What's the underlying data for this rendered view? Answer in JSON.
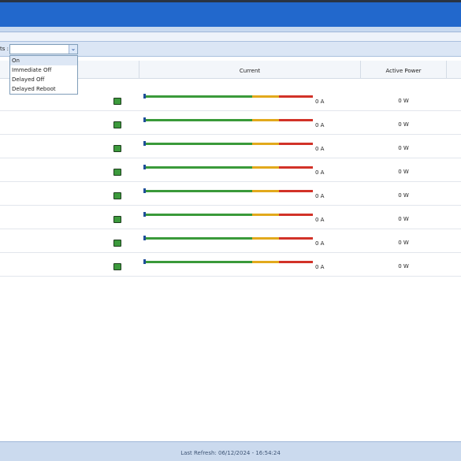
{
  "toolbar": {
    "label": "ts :"
  },
  "dropdown": {
    "options": [
      "On",
      "Immediate Off",
      "Delayed Off",
      "Delayed Reboot"
    ]
  },
  "table": {
    "columns": [
      "Current",
      "Active Power"
    ],
    "rows": [
      {
        "current": "0 A",
        "active_power": "0 W"
      },
      {
        "current": "0 A",
        "active_power": "0 W"
      },
      {
        "current": "0 A",
        "active_power": "0 W"
      },
      {
        "current": "0 A",
        "active_power": "0 W"
      },
      {
        "current": "0 A",
        "active_power": "0 W"
      },
      {
        "current": "0 A",
        "active_power": "0 W"
      },
      {
        "current": "0 A",
        "active_power": "0 W"
      },
      {
        "current": "0 A",
        "active_power": "0 W"
      }
    ]
  },
  "footer": {
    "text": "Last Refresh: 06/12/2024 - 16:54:24"
  }
}
